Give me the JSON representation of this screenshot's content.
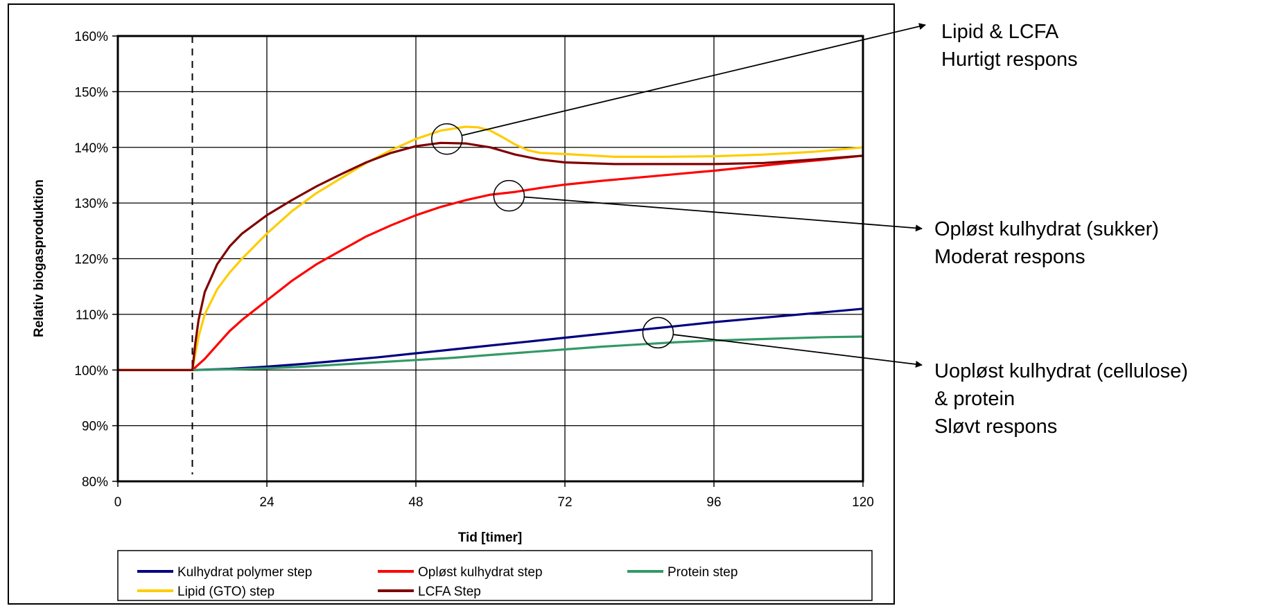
{
  "chart_data": {
    "type": "line",
    "title": "",
    "xlabel": "Tid [timer]",
    "ylabel": "Relativ biogasproduktion",
    "xlim": [
      0,
      120
    ],
    "ylim": [
      0.8,
      1.6
    ],
    "xticks": [
      0,
      24,
      48,
      72,
      96,
      120
    ],
    "xtick_labels": [
      "0",
      "24",
      "48",
      "72",
      "96",
      "120"
    ],
    "yticks": [
      0.8,
      0.9,
      1.0,
      1.1,
      1.2,
      1.3,
      1.4,
      1.5,
      1.6
    ],
    "ytick_labels": [
      "80%",
      "90%",
      "100%",
      "110%",
      "120%",
      "130%",
      "140%",
      "150%",
      "160%"
    ],
    "grid": true,
    "legend_position": "bottom",
    "step_time": 12,
    "series": [
      {
        "name": "Kulhydrat polymer step",
        "color": "#000080",
        "x": [
          0,
          12,
          18,
          24,
          30,
          36,
          42,
          48,
          54,
          60,
          66,
          72,
          78,
          84,
          90,
          96,
          102,
          108,
          114,
          120
        ],
        "y": [
          1.0,
          1.0,
          1.002,
          1.006,
          1.011,
          1.017,
          1.023,
          1.03,
          1.037,
          1.044,
          1.051,
          1.058,
          1.065,
          1.072,
          1.079,
          1.086,
          1.092,
          1.098,
          1.104,
          1.11
        ]
      },
      {
        "name": "Opløst kulhydrat step",
        "color": "#ff0000",
        "x": [
          0,
          12,
          14,
          16,
          18,
          20,
          24,
          28,
          32,
          36,
          40,
          44,
          48,
          52,
          56,
          60,
          64,
          68,
          72,
          78,
          84,
          90,
          96,
          102,
          108,
          114,
          120
        ],
        "y": [
          1.0,
          1.0,
          1.02,
          1.045,
          1.07,
          1.09,
          1.125,
          1.16,
          1.19,
          1.215,
          1.24,
          1.26,
          1.278,
          1.293,
          1.305,
          1.315,
          1.32,
          1.327,
          1.333,
          1.34,
          1.346,
          1.352,
          1.358,
          1.365,
          1.372,
          1.378,
          1.385
        ]
      },
      {
        "name": "Protein step",
        "color": "#339966",
        "x": [
          0,
          12,
          18,
          24,
          30,
          36,
          42,
          48,
          54,
          60,
          66,
          72,
          78,
          84,
          90,
          96,
          102,
          108,
          114,
          120
        ],
        "y": [
          1.0,
          1.0,
          1.001,
          1.003,
          1.006,
          1.01,
          1.014,
          1.018,
          1.022,
          1.027,
          1.032,
          1.037,
          1.042,
          1.046,
          1.05,
          1.053,
          1.055,
          1.057,
          1.059,
          1.06
        ]
      },
      {
        "name": "Lipid (GTO) step",
        "color": "#ffcc00",
        "x": [
          0,
          12,
          13,
          14,
          16,
          18,
          20,
          24,
          28,
          32,
          36,
          40,
          44,
          48,
          52,
          56,
          58,
          60,
          62,
          64,
          66,
          68,
          72,
          80,
          88,
          96,
          104,
          112,
          120
        ],
        "y": [
          1.0,
          1.0,
          1.06,
          1.1,
          1.145,
          1.175,
          1.2,
          1.245,
          1.285,
          1.318,
          1.345,
          1.372,
          1.395,
          1.415,
          1.43,
          1.437,
          1.436,
          1.43,
          1.418,
          1.405,
          1.395,
          1.39,
          1.388,
          1.383,
          1.383,
          1.384,
          1.387,
          1.392,
          1.4
        ]
      },
      {
        "name": "LCFA Step",
        "color": "#800000",
        "x": [
          0,
          12,
          12.5,
          13,
          14,
          16,
          18,
          20,
          24,
          28,
          32,
          36,
          40,
          44,
          48,
          52,
          56,
          60,
          64,
          68,
          72,
          80,
          88,
          96,
          104,
          112,
          120
        ],
        "y": [
          1.0,
          1.0,
          1.05,
          1.09,
          1.14,
          1.19,
          1.222,
          1.245,
          1.278,
          1.305,
          1.33,
          1.352,
          1.373,
          1.39,
          1.402,
          1.408,
          1.407,
          1.4,
          1.387,
          1.378,
          1.373,
          1.37,
          1.37,
          1.37,
          1.372,
          1.378,
          1.385
        ]
      }
    ],
    "annotations": [
      {
        "lines": [
          "Lipid & LCFA",
          "Hurtigt respons"
        ],
        "point": {
          "x": 53,
          "y": 1.415
        }
      },
      {
        "lines": [
          "Opløst kulhydrat (sukker)",
          "Moderat respons"
        ],
        "point": {
          "x": 63,
          "y": 1.313
        }
      },
      {
        "lines": [
          "Uopløst kulhydrat (cellulose)",
          "& protein",
          "Sløvt respons"
        ],
        "point": {
          "x": 87,
          "y": 1.067
        }
      }
    ]
  }
}
